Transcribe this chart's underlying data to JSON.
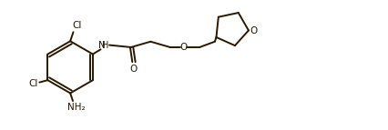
{
  "bg_color": "#ffffff",
  "line_color": "#2a1800",
  "text_color": "#2a1800",
  "figsize": [
    4.26,
    1.43
  ],
  "dpi": 100,
  "lw": 1.4,
  "fs": 7.5,
  "xlim": [
    0.0,
    8.8
  ],
  "ylim": [
    -0.2,
    2.8
  ]
}
